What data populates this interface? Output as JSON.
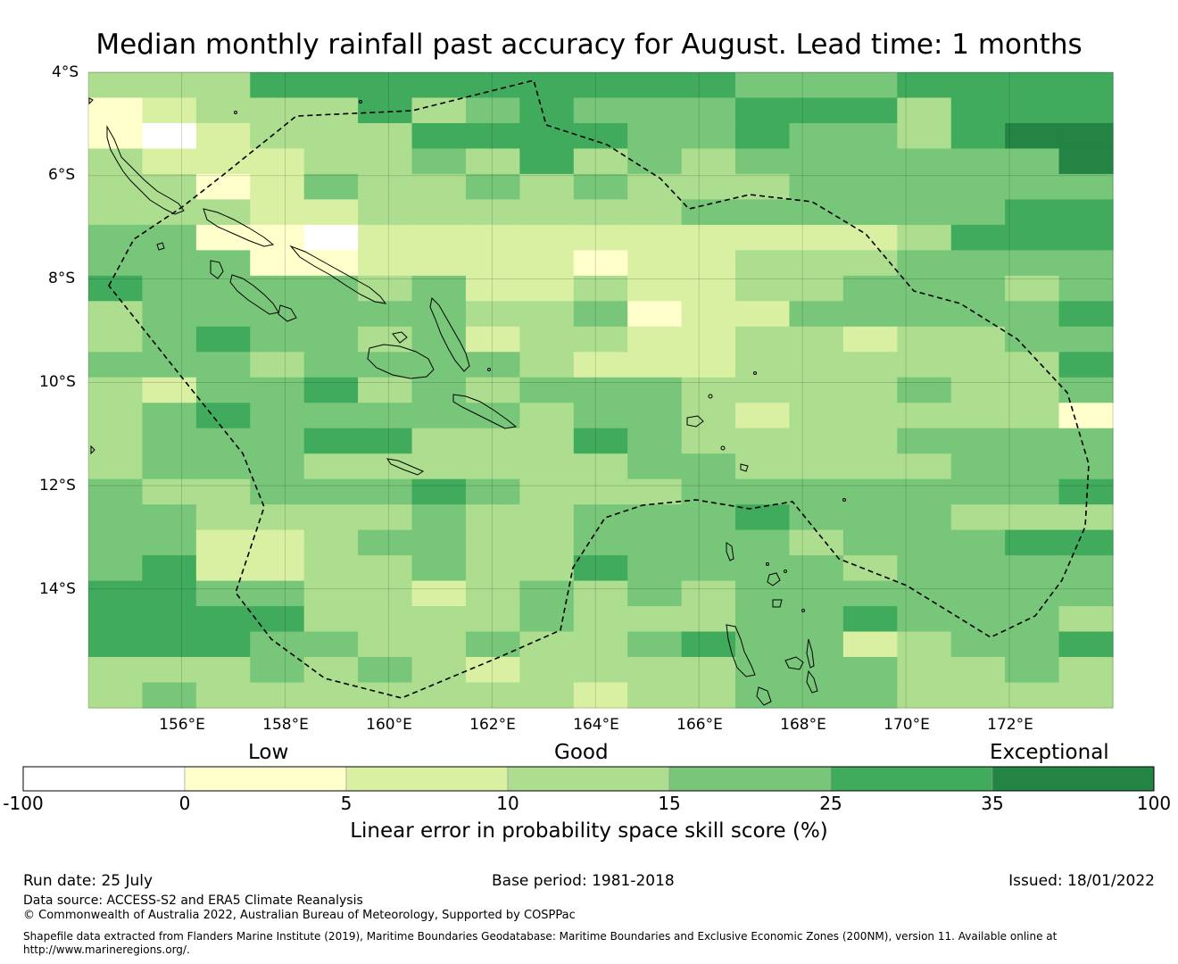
{
  "title": "Median monthly rainfall past accuracy for August. Lead time: 1 months",
  "map": {
    "lat_labels": [
      "4°S",
      "6°S",
      "8°S",
      "10°S",
      "12°S",
      "14°S"
    ],
    "lon_labels": [
      "156°E",
      "158°E",
      "160°E",
      "162°E",
      "164°E",
      "166°E",
      "168°E",
      "170°E",
      "172°E"
    ],
    "extent": {
      "lon_min": 154.2,
      "lon_max": 174.0,
      "lat_top": -4.0,
      "lat_bottom": -16.3
    },
    "cell_rows": [
      "3335555555554445555",
      "1233353454445553555",
      "1023335555445443566",
      "3222334353434444446",
      "3312433434333444444",
      "3332233333344444455",
      "4411022222222223555",
      "4441122221223334444",
      "5444434223223344434",
      "3444444334122444445",
      "3454434233223323344",
      "4443444432223333335",
      "3244534344433334334",
      "3454444434432333331",
      "3444553335433334444",
      "3444333333443333444",
      "4334445433344444445",
      "4433334334445444333",
      "4422344334444344455",
      "4522334335444434444",
      "5544332343434444444",
      "5555333343334454443",
      "5554433433454423445",
      "3334343233334443343",
      "3433333332334443333"
    ],
    "palette": [
      "#ffffff",
      "#ffffcc",
      "#d9f0a3",
      "#addd8e",
      "#78c679",
      "#41ab5d",
      "#238443"
    ],
    "island_color": "#000000",
    "eez_style": "dashed"
  },
  "colorbar": {
    "categories": [
      "Low",
      "Good",
      "Exceptional"
    ],
    "ticks": [
      "-100",
      "0",
      "5",
      "10",
      "15",
      "25",
      "35",
      "100"
    ],
    "colors": [
      "#ffffff",
      "#ffffcc",
      "#d9f0a3",
      "#addd8e",
      "#78c679",
      "#41ab5d",
      "#238443"
    ],
    "title": "Linear error in probability space skill score (%)"
  },
  "footer": {
    "run_date": "Run date: 25 July",
    "base_period": "Base period: 1981-2018",
    "issued": "Issued: 18/01/2022",
    "data_source": "Data source: ACCESS-S2 and ERA5 Climate Reanalysis",
    "copyright": "© Commonwealth of Australia 2022, Australian Bureau of Meteorology, Supported by COSPPac",
    "shapefile_line1": "Shapefile data extracted from Flanders Marine Institute (2019), Maritime Boundaries Geodatabase: Maritime Boundaries and Exclusive Economic Zones (200NM), version 11. Available online at",
    "shapefile_line2": "http://www.marineregions.org/."
  }
}
